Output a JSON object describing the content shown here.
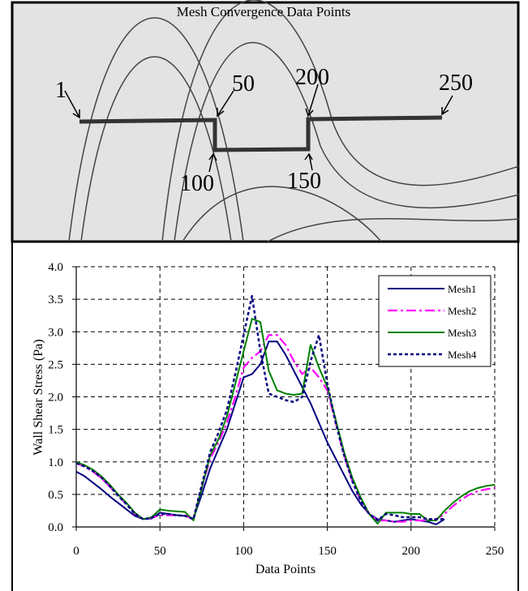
{
  "diagram": {
    "title": "Mesh Convergence Data Points",
    "labels": [
      "1",
      "50",
      "100",
      "150",
      "200",
      "250"
    ]
  },
  "chart_data": {
    "type": "line",
    "y_label": "Wall Shear Stress (Pa)",
    "x_label": "Data Points",
    "x": [
      0,
      5,
      10,
      15,
      20,
      25,
      30,
      35,
      40,
      45,
      50,
      55,
      60,
      65,
      70,
      75,
      80,
      85,
      90,
      95,
      100,
      105,
      110,
      115,
      120,
      125,
      130,
      135,
      140,
      145,
      150,
      155,
      160,
      165,
      170,
      175,
      180,
      185,
      190,
      195,
      200,
      205,
      210,
      215,
      220,
      225,
      230,
      235,
      240,
      245,
      250
    ],
    "series": [
      {
        "name": "Mesh1",
        "color": "#000080",
        "style": "solid",
        "values": [
          0.85,
          0.78,
          0.68,
          0.58,
          0.47,
          0.37,
          0.27,
          0.17,
          0.12,
          0.13,
          0.22,
          0.2,
          0.18,
          0.17,
          0.13,
          0.5,
          0.9,
          1.2,
          1.5,
          1.9,
          2.3,
          2.35,
          2.5,
          2.85,
          2.85,
          2.65,
          2.4,
          2.15,
          1.9,
          1.6,
          1.3,
          1.05,
          0.8,
          0.55,
          0.35,
          0.2,
          0.12,
          0.1,
          0.08,
          0.1,
          0.12,
          0.1,
          0.08,
          0.04,
          0.12,
          null,
          null,
          null,
          null,
          null,
          null
        ]
      },
      {
        "name": "Mesh2",
        "color": "#ff00ff",
        "style": "dashdot",
        "values": [
          0.98,
          0.93,
          0.85,
          0.75,
          0.62,
          0.48,
          0.35,
          0.2,
          0.12,
          0.14,
          0.18,
          0.18,
          0.18,
          0.18,
          0.12,
          0.6,
          1.05,
          1.3,
          1.6,
          2.0,
          2.45,
          2.6,
          2.7,
          2.95,
          2.95,
          2.8,
          2.55,
          2.35,
          2.45,
          2.3,
          2.1,
          1.6,
          1.1,
          0.7,
          0.4,
          0.2,
          0.1,
          0.1,
          0.08,
          0.08,
          0.1,
          0.1,
          0.1,
          0.12,
          0.2,
          0.32,
          0.42,
          0.5,
          0.55,
          0.58,
          0.6
        ]
      },
      {
        "name": "Mesh3",
        "color": "#008000",
        "style": "solid",
        "values": [
          1.0,
          0.95,
          0.88,
          0.78,
          0.65,
          0.5,
          0.37,
          0.22,
          0.12,
          0.15,
          0.27,
          0.25,
          0.24,
          0.23,
          0.1,
          0.6,
          1.1,
          1.35,
          1.7,
          2.2,
          2.7,
          3.2,
          3.15,
          2.4,
          2.1,
          2.05,
          2.03,
          2.05,
          2.8,
          2.45,
          2.15,
          1.65,
          1.15,
          0.75,
          0.45,
          0.2,
          0.05,
          0.22,
          0.22,
          0.22,
          0.2,
          0.2,
          0.1,
          0.1,
          0.25,
          0.37,
          0.47,
          0.55,
          0.6,
          0.63,
          0.65
        ]
      },
      {
        "name": "Mesh4",
        "color": "#000080",
        "style": "dotted",
        "values": [
          0.98,
          0.93,
          0.86,
          0.76,
          0.63,
          0.48,
          0.35,
          0.2,
          0.12,
          0.14,
          0.2,
          0.2,
          0.18,
          0.17,
          0.12,
          0.65,
          1.15,
          1.45,
          1.8,
          2.35,
          2.95,
          3.55,
          2.7,
          2.05,
          2.0,
          1.95,
          1.92,
          2.0,
          2.55,
          2.95,
          2.2,
          1.6,
          1.1,
          0.7,
          0.4,
          0.2,
          0.1,
          0.2,
          0.18,
          0.15,
          0.15,
          0.15,
          0.12,
          0.12,
          0.12,
          null,
          null,
          null,
          null,
          null,
          null
        ]
      }
    ],
    "xlim": [
      0,
      250
    ],
    "xticks": [
      0,
      50,
      100,
      150,
      200,
      250
    ],
    "ylim": [
      0,
      4
    ],
    "yticks": [
      {
        "value": 0,
        "label": "0.0"
      },
      0.5,
      {
        "value": 1,
        "label": "1.0"
      },
      1.5,
      {
        "value": 2,
        "label": "2.0"
      },
      2.5,
      {
        "value": 3,
        "label": "3.0"
      },
      3.5,
      {
        "value": 4,
        "label": "4.0"
      }
    ],
    "grid": true,
    "legend": "upper right"
  }
}
